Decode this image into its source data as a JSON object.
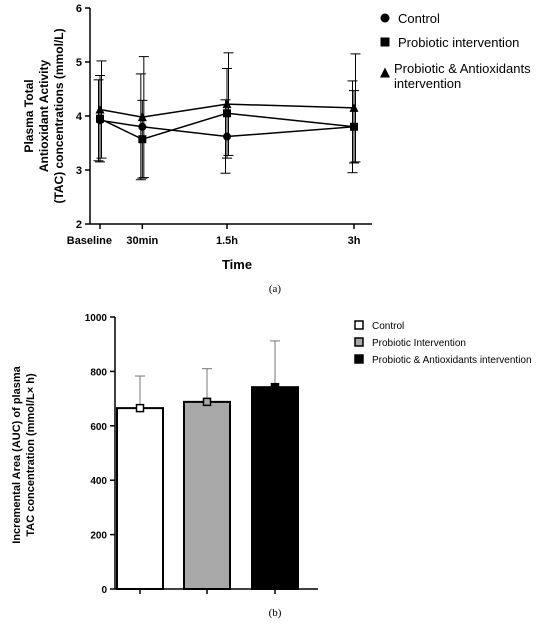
{
  "chart_data": [
    {
      "type": "line",
      "panel_label": "(a)",
      "ylabel_lines": [
        "Plasma Total",
        "Antioxidant Activity",
        "(TAC) concentrations (mmol/L)"
      ],
      "xlabel": "Time",
      "x": [
        0,
        30,
        90,
        180
      ],
      "x_ticks": [
        {
          "x": 0,
          "label": "Baseline"
        },
        {
          "x": 30,
          "label": "30min"
        },
        {
          "x": 90,
          "label": "1.5h"
        },
        {
          "x": 180,
          "label": "3h"
        }
      ],
      "ylim": [
        2,
        6
      ],
      "y_ticks": [
        "2",
        "3",
        "4",
        "5",
        "6"
      ],
      "series": [
        {
          "name": "Control",
          "marker": "circle",
          "values": [
            3.92,
            3.8,
            3.62,
            3.8
          ],
          "err": [
            0.75,
            0.98,
            0.68,
            0.85
          ]
        },
        {
          "name": "Probiotic intervention",
          "marker": "square",
          "values": [
            3.95,
            3.57,
            4.05,
            3.8
          ],
          "err": [
            0.8,
            0.72,
            0.83,
            0.67
          ]
        },
        {
          "name": "Probiotic & Antioxidants intervention",
          "legend_lines": [
            "Probiotic & Antioxidants",
            "intervention"
          ],
          "marker": "triangle",
          "values": [
            4.12,
            3.98,
            4.22,
            4.15
          ],
          "err": [
            0.9,
            1.12,
            0.95,
            1.0
          ]
        }
      ]
    },
    {
      "type": "bar",
      "panel_label": "(b)",
      "ylabel_lines": [
        "Incremental Area (AUC) of plasma",
        "TAC concentration (mmol/L× h)"
      ],
      "categories": [
        "Control",
        "Probiotic Intervention",
        "Probiotic & Antioxidants intervention"
      ],
      "values": [
        665,
        688,
        742
      ],
      "err": [
        118,
        122,
        170
      ],
      "ylim": [
        0,
        1000
      ],
      "y_ticks": [
        "0",
        "200",
        "400",
        "600",
        "800",
        "1000"
      ],
      "colors": [
        "#ffffff",
        "#a8a8a8",
        "#000000"
      ]
    }
  ]
}
